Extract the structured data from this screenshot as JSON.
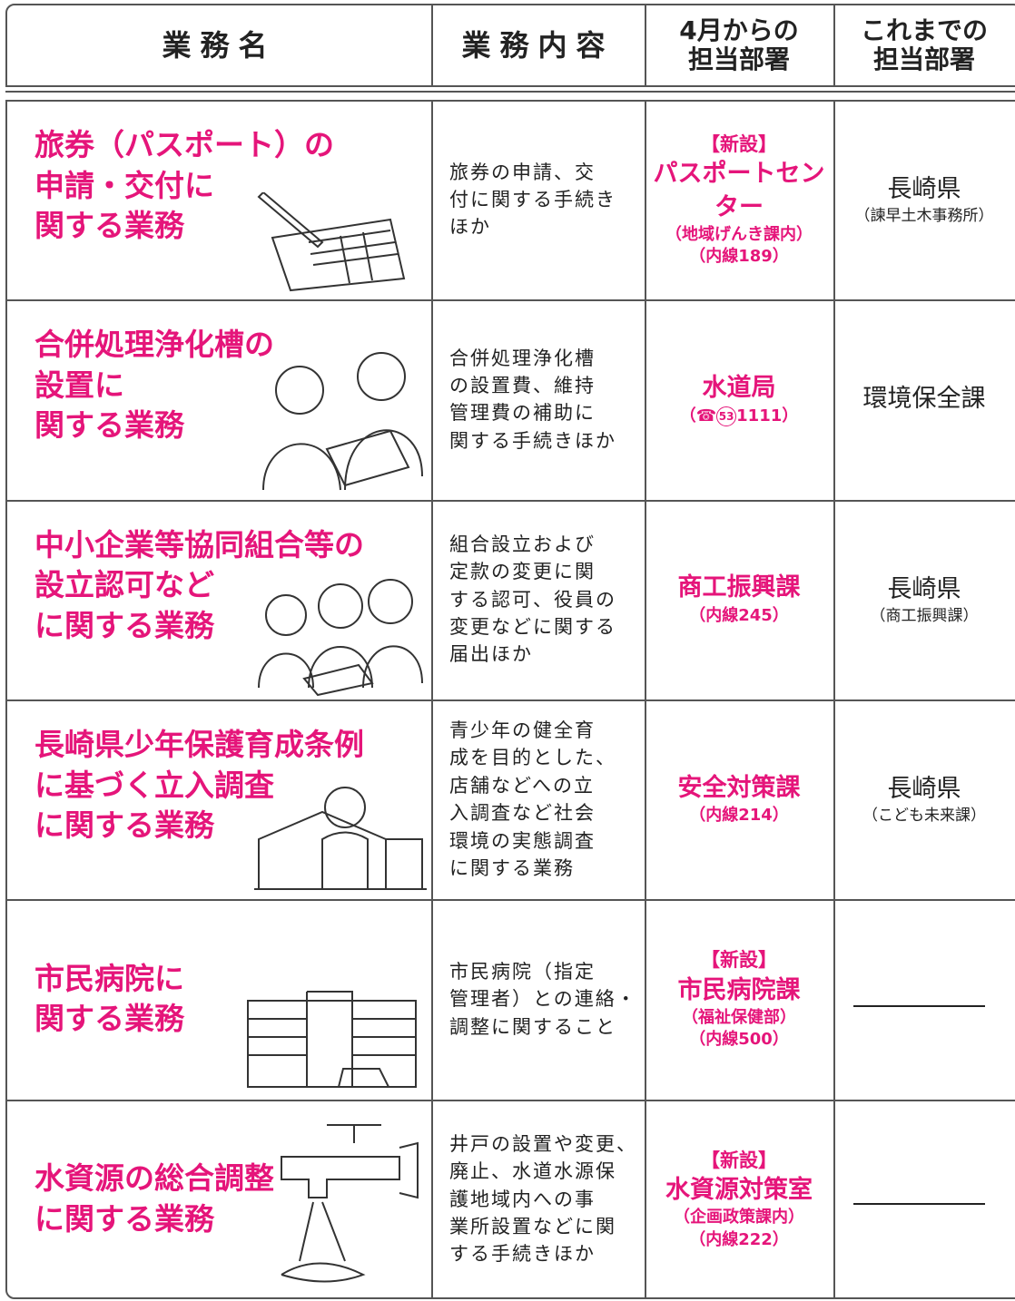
{
  "header": [
    "業務名",
    "業務内容",
    [
      "4月からの",
      "担当部署"
    ],
    [
      "これまでの",
      "担当部署"
    ]
  ],
  "rows": [
    {
      "name": [
        "旅券（パスポート）の",
        "申請・交付に",
        "関する業務"
      ],
      "content": [
        "旅券の申請、交",
        "付に関する手続き",
        "ほか"
      ],
      "dept": {
        "tag": "【新設】",
        "name": "パスポートセンター",
        "notes": [
          "（地域げんき課内）",
          "（内線189）"
        ]
      },
      "previous": {
        "name": "長崎県",
        "note": "（諫早土木事務所）"
      }
    },
    {
      "name": [
        "合併処理浄化槽の",
        "設置に",
        "関する業務"
      ],
      "content": [
        "合併処理浄化槽",
        "の設置費、維持",
        "管理費の補助に",
        "関する手続きほか"
      ],
      "dept": {
        "name": "水道局",
        "phone": {
          "open": "（☎",
          "area": "53",
          "rest": "1111）"
        }
      },
      "previous": {
        "name": "環境保全課"
      }
    },
    {
      "name": [
        "中小企業等協同組合等の",
        "設立認可など",
        "に関する業務"
      ],
      "content": [
        "組合設立および",
        "定款の変更に関",
        "する認可、役員の",
        "変更などに関する",
        "届出ほか"
      ],
      "dept": {
        "name": "商工振興課",
        "notes": [
          "（内線245）"
        ]
      },
      "previous": {
        "name": "長崎県",
        "note": "（商工振興課）"
      }
    },
    {
      "name": [
        "長崎県少年保護育成条例",
        "に基づく立入調査",
        "に関する業務"
      ],
      "content": [
        "青少年の健全育",
        "成を目的とした、",
        "店舗などへの立",
        "入調査など社会",
        "環境の実態調査",
        "に関する業務"
      ],
      "dept": {
        "name": "安全対策課",
        "notes": [
          "（内線214）"
        ]
      },
      "previous": {
        "name": "長崎県",
        "note": "（こども未来課）"
      }
    },
    {
      "name": [
        "市民病院に",
        "関する業務"
      ],
      "content": [
        "市民病院（指定",
        "管理者）との連絡・",
        "調整に関すること"
      ],
      "dept": {
        "tag": "【新設】",
        "name": "市民病院課",
        "notes": [
          "（福祉保健部）",
          "（内線500）"
        ]
      }
    },
    {
      "name": [
        "水資源の総合調整",
        "に関する業務"
      ],
      "content": [
        "井戸の設置や変更、",
        "廃止、水道水源保",
        "護地域内への事",
        "業所設置などに関",
        "する手続きほか"
      ],
      "dept": {
        "tag": "【新設】",
        "name": "水資源対策室",
        "notes": [
          "（企画政策課内）",
          "（内線222）"
        ]
      }
    }
  ]
}
